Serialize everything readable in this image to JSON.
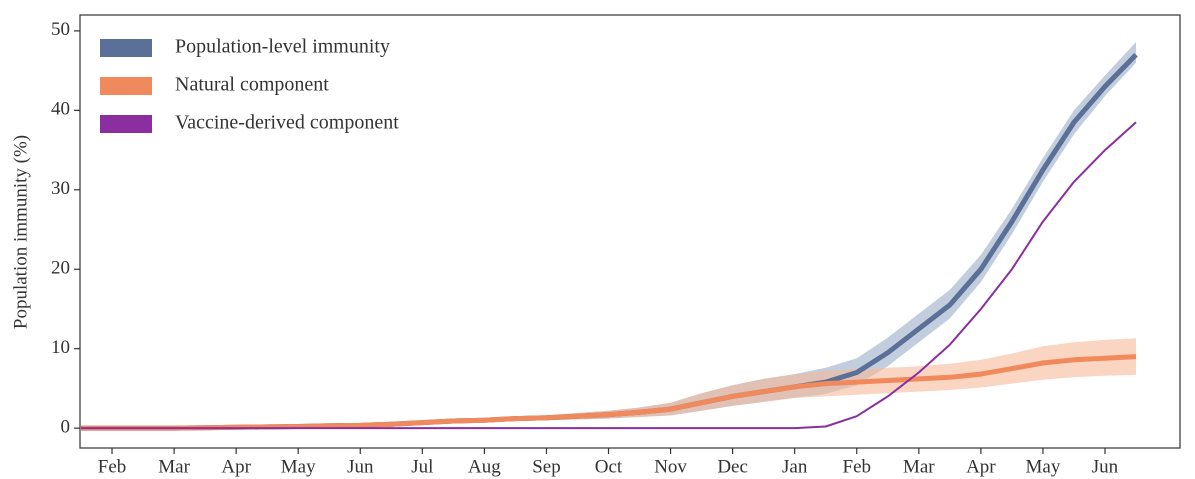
{
  "chart_data": {
    "type": "line",
    "y_label": "Population immunity (%)",
    "categories": [
      null,
      "Feb",
      null,
      "Mar",
      null,
      "Apr",
      null,
      "May",
      null,
      "Jun",
      null,
      "Jul",
      null,
      "Aug",
      null,
      "Sep",
      null,
      "Oct",
      null,
      "Nov",
      null,
      "Dec",
      null,
      "Jan",
      null,
      "Feb",
      null,
      "Mar",
      null,
      "Apr",
      null,
      "May",
      null,
      "Jun",
      null
    ],
    "ylim": [
      -2.5,
      52
    ],
    "yticks": [
      0,
      10,
      20,
      30,
      40,
      50
    ],
    "grid": false,
    "legend": "upper left",
    "series": [
      {
        "name": "Population-level immunity",
        "color": "#5a7096",
        "band_color": "#9aabc8",
        "values": [
          0,
          0,
          0,
          0,
          0.05,
          0.1,
          0.15,
          0.2,
          0.3,
          0.35,
          0.5,
          0.7,
          0.9,
          1.0,
          1.2,
          1.3,
          1.5,
          1.7,
          2.0,
          2.4,
          3.2,
          4.0,
          4.6,
          5.2,
          5.8,
          7.0,
          9.5,
          12.5,
          15.5,
          20,
          26,
          32.5,
          38.5,
          43,
          47
        ],
        "lower": [
          0,
          0,
          0,
          0,
          0,
          0.05,
          0.1,
          0.15,
          0.2,
          0.25,
          0.35,
          0.5,
          0.7,
          0.8,
          0.9,
          1.0,
          1.1,
          1.2,
          1.4,
          1.6,
          2.2,
          2.8,
          3.3,
          3.8,
          4.3,
          5.4,
          7.8,
          10.8,
          13.8,
          18.4,
          24.4,
          31,
          37,
          41.8,
          46
        ],
        "upper": [
          0,
          0,
          0,
          0,
          0.1,
          0.15,
          0.2,
          0.25,
          0.4,
          0.45,
          0.65,
          0.9,
          1.1,
          1.2,
          1.5,
          1.6,
          1.9,
          2.2,
          2.6,
          3.2,
          4.4,
          5.4,
          6.2,
          6.8,
          7.6,
          8.8,
          11.4,
          14.4,
          17.4,
          21.8,
          27.6,
          34,
          40,
          44.4,
          48.6
        ]
      },
      {
        "name": "Natural component",
        "color": "#f08a5d",
        "band_color": "#f7b999",
        "values": [
          0,
          0,
          0,
          0,
          0.05,
          0.1,
          0.15,
          0.2,
          0.3,
          0.35,
          0.5,
          0.7,
          0.9,
          1.0,
          1.2,
          1.3,
          1.5,
          1.7,
          2.0,
          2.4,
          3.2,
          4.0,
          4.6,
          5.2,
          5.6,
          5.8,
          6.0,
          6.2,
          6.4,
          6.8,
          7.5,
          8.2,
          8.6,
          8.8,
          9.0
        ],
        "lower": [
          0,
          0,
          0,
          0,
          0,
          0.05,
          0.1,
          0.15,
          0.2,
          0.25,
          0.35,
          0.5,
          0.7,
          0.8,
          0.9,
          1.0,
          1.1,
          1.2,
          1.4,
          1.6,
          2.2,
          2.8,
          3.3,
          3.8,
          4.0,
          4.2,
          4.4,
          4.6,
          4.8,
          5.1,
          5.6,
          6.1,
          6.4,
          6.6,
          6.7
        ],
        "upper": [
          0,
          0,
          0,
          0,
          0.1,
          0.15,
          0.2,
          0.25,
          0.4,
          0.45,
          0.65,
          0.9,
          1.1,
          1.2,
          1.5,
          1.6,
          1.9,
          2.2,
          2.6,
          3.2,
          4.4,
          5.4,
          6.2,
          6.8,
          7.2,
          7.4,
          7.6,
          7.8,
          8.1,
          8.6,
          9.4,
          10.3,
          10.8,
          11.1,
          11.3
        ]
      },
      {
        "name": "Vaccine-derived component",
        "color": "#8b2fa0",
        "values": [
          0,
          0,
          0,
          0,
          0,
          0,
          0,
          0,
          0,
          0,
          0,
          0,
          0,
          0,
          0,
          0,
          0,
          0,
          0,
          0,
          0,
          0,
          0,
          0,
          0.2,
          1.5,
          4,
          7,
          10.5,
          15,
          20,
          26,
          31,
          35,
          38.5
        ]
      }
    ]
  }
}
